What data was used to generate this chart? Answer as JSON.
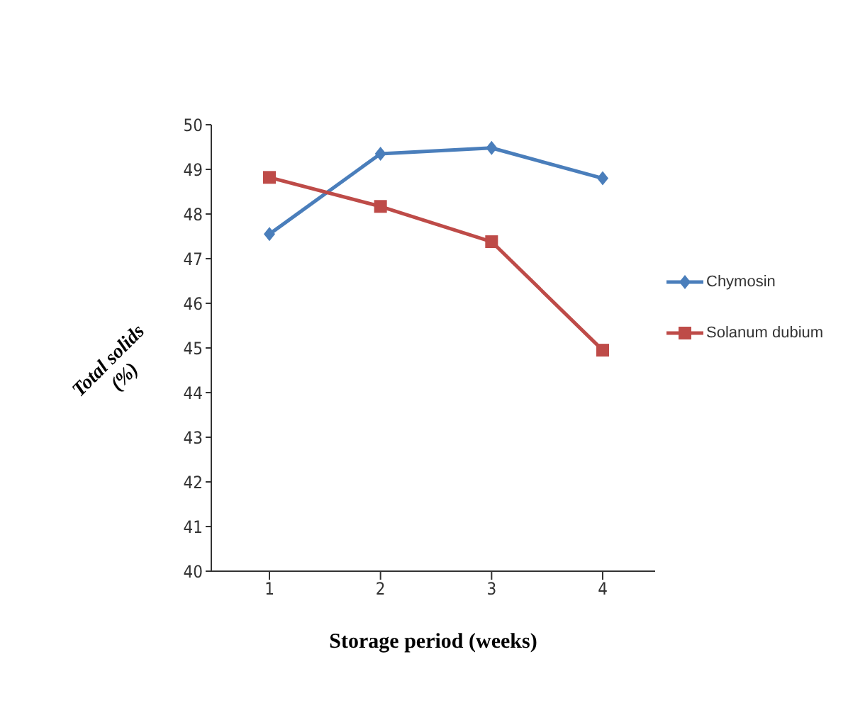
{
  "chart_data": {
    "type": "line",
    "xlabel": "Storage period (weeks)",
    "ylabel": "Total solids (%)",
    "categories": [
      "1",
      "2",
      "3",
      "4"
    ],
    "series": [
      {
        "name": "Chymosin",
        "color": "#4a7ebb",
        "marker": "diamond",
        "values": [
          47.55,
          49.35,
          49.48,
          48.8
        ]
      },
      {
        "name": "Solanum dubium",
        "color": "#be4b48",
        "marker": "square",
        "values": [
          48.82,
          48.17,
          47.38,
          44.95
        ]
      }
    ],
    "ylim": [
      40,
      50
    ],
    "yticks": [
      40,
      41,
      42,
      43,
      44,
      45,
      46,
      47,
      48,
      49,
      50
    ],
    "legend": "right",
    "line_style": "solid"
  }
}
